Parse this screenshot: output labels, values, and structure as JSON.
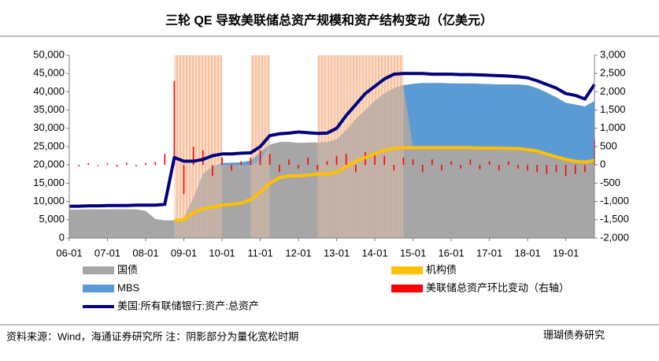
{
  "chart_data": {
    "type": "combo",
    "title": "三轮 QE 导致美联储总资产规模和资产结构变动（亿美元）",
    "x": [
      "06-01",
      "06-04",
      "06-07",
      "06-10",
      "07-01",
      "07-04",
      "07-07",
      "07-10",
      "08-01",
      "08-04",
      "08-07",
      "08-10",
      "09-01",
      "09-04",
      "09-07",
      "09-10",
      "10-01",
      "10-04",
      "10-07",
      "10-10",
      "11-01",
      "11-04",
      "11-07",
      "11-10",
      "12-01",
      "12-04",
      "12-07",
      "12-10",
      "13-01",
      "13-04",
      "13-07",
      "13-10",
      "14-01",
      "14-04",
      "14-07",
      "14-10",
      "15-01",
      "15-04",
      "15-07",
      "15-10",
      "16-01",
      "16-04",
      "16-07",
      "16-10",
      "17-01",
      "17-04",
      "17-07",
      "17-10",
      "18-01",
      "18-04",
      "18-07",
      "18-10",
      "19-01",
      "19-04",
      "19-07",
      "19-10"
    ],
    "xticks": [
      "06-01",
      "07-01",
      "08-01",
      "09-01",
      "10-01",
      "11-01",
      "12-01",
      "13-01",
      "14-01",
      "15-01",
      "16-01",
      "17-01",
      "18-01",
      "19-01"
    ],
    "ylim": [
      0,
      50000
    ],
    "yticks": [
      0,
      {
        "value": 5000,
        "label": "5,000"
      },
      {
        "value": 10000,
        "label": "10,000"
      },
      {
        "value": 15000,
        "label": "15,000"
      },
      {
        "value": 20000,
        "label": "20,000"
      },
      {
        "value": 25000,
        "label": "25,000"
      },
      {
        "value": 30000,
        "label": "30,000"
      },
      {
        "value": 35000,
        "label": "35,000"
      },
      {
        "value": 40000,
        "label": "40,000"
      },
      {
        "value": 45000,
        "label": "45,000"
      },
      {
        "value": 50000,
        "label": "50,000"
      }
    ],
    "y2lim": [
      -2000,
      3000
    ],
    "y2ticks": [
      {
        "value": -2000,
        "label": "-2,000"
      },
      {
        "value": -1500,
        "label": "-1,500"
      },
      {
        "value": -1000,
        "label": "-1,000"
      },
      -500,
      0,
      500,
      {
        "value": 1000,
        "label": "1,000"
      },
      {
        "value": 1500,
        "label": "1,500"
      },
      {
        "value": 2000,
        "label": "2,000"
      },
      {
        "value": 2500,
        "label": "2,500"
      },
      {
        "value": 3000,
        "label": "3,000"
      }
    ],
    "shaded_periods": [
      [
        "08-10",
        "10-01"
      ],
      [
        "10-10",
        "11-04"
      ],
      [
        "12-07",
        "14-10"
      ]
    ],
    "series": [
      {
        "name": "MBS",
        "kind": "area",
        "color": "#5b9bd5",
        "values": [
          7700,
          7750,
          7800,
          7800,
          7800,
          7850,
          7850,
          7800,
          7400,
          5200,
          4800,
          4800,
          5500,
          11000,
          17500,
          19500,
          20500,
          20600,
          20700,
          21200,
          23500,
          25500,
          26200,
          26300,
          26000,
          26100,
          26100,
          26200,
          27000,
          29500,
          32500,
          35000,
          37500,
          39500,
          41000,
          41800,
          42200,
          42400,
          42400,
          42400,
          42300,
          42300,
          42300,
          42200,
          42100,
          42000,
          42000,
          42000,
          41800,
          41000,
          39800,
          38500,
          37000,
          36500,
          36000,
          37500
        ]
      },
      {
        "name": "国债",
        "kind": "area",
        "color": "#a6a6a6",
        "values": [
          7700,
          7750,
          7800,
          7800,
          7800,
          7850,
          7850,
          7800,
          7400,
          5200,
          4800,
          4800,
          5500,
          11000,
          17500,
          19500,
          20000,
          20000,
          20000,
          20000,
          21000,
          25500,
          26200,
          26300,
          26000,
          26100,
          26100,
          26200,
          27000,
          29500,
          32500,
          35000,
          37500,
          39500,
          41000,
          41800,
          24600,
          24700,
          24700,
          24700,
          24700,
          24700,
          24700,
          24600,
          24600,
          24600,
          24500,
          24500,
          24200,
          23800,
          23000,
          22200,
          21500,
          21000,
          20800,
          21200
        ]
      },
      {
        "name": "美联储总资产环比变动（右轴）",
        "kind": "bar",
        "axis": "y2",
        "color": "#ff0000",
        "values": [
          30,
          -40,
          50,
          -30,
          40,
          -50,
          60,
          -40,
          50,
          80,
          300,
          2300,
          -800,
          500,
          400,
          -300,
          200,
          -150,
          100,
          200,
          400,
          300,
          -200,
          150,
          -100,
          200,
          -150,
          100,
          250,
          300,
          -200,
          350,
          300,
          250,
          -150,
          200,
          150,
          -200,
          150,
          -150,
          100,
          -100,
          150,
          -120,
          100,
          -150,
          100,
          -100,
          -150,
          -200,
          -250,
          -200,
          -300,
          -250,
          -200,
          700
        ]
      },
      {
        "name": "机构债",
        "kind": "line",
        "color": "#ffc000",
        "values": [
          null,
          null,
          null,
          null,
          null,
          null,
          null,
          null,
          null,
          null,
          null,
          4800,
          5000,
          7000,
          8000,
          8500,
          9000,
          9200,
          9500,
          10500,
          12500,
          15000,
          16500,
          17000,
          17000,
          17200,
          17500,
          17500,
          18000,
          19500,
          21000,
          22000,
          23000,
          24000,
          24500,
          24700,
          24700,
          24700,
          24700,
          24700,
          24700,
          24700,
          24700,
          24600,
          24600,
          24600,
          24500,
          24500,
          24200,
          23800,
          23000,
          22200,
          21500,
          21000,
          20800,
          21200
        ]
      },
      {
        "name": "美国:所有联储银行:资产:总资产",
        "kind": "line",
        "color": "#00007f",
        "values": [
          8700,
          8700,
          8800,
          8800,
          8900,
          8900,
          8900,
          9000,
          9000,
          9000,
          9200,
          22000,
          21000,
          21000,
          21500,
          22500,
          23000,
          23000,
          23200,
          23300,
          25000,
          28000,
          28500,
          28700,
          29000,
          28800,
          28600,
          28700,
          30000,
          33500,
          36500,
          39500,
          41500,
          43500,
          44800,
          45000,
          45000,
          45000,
          44800,
          44800,
          44800,
          44700,
          44700,
          44600,
          44500,
          44400,
          44300,
          44100,
          43800,
          43000,
          42000,
          41000,
          39500,
          39000,
          38000,
          42000
        ]
      }
    ],
    "source": "资料来源：Wind，海通证券研究所   注：阴影部分为量化宽松时期",
    "watermark": "珊瑚债券研究"
  }
}
